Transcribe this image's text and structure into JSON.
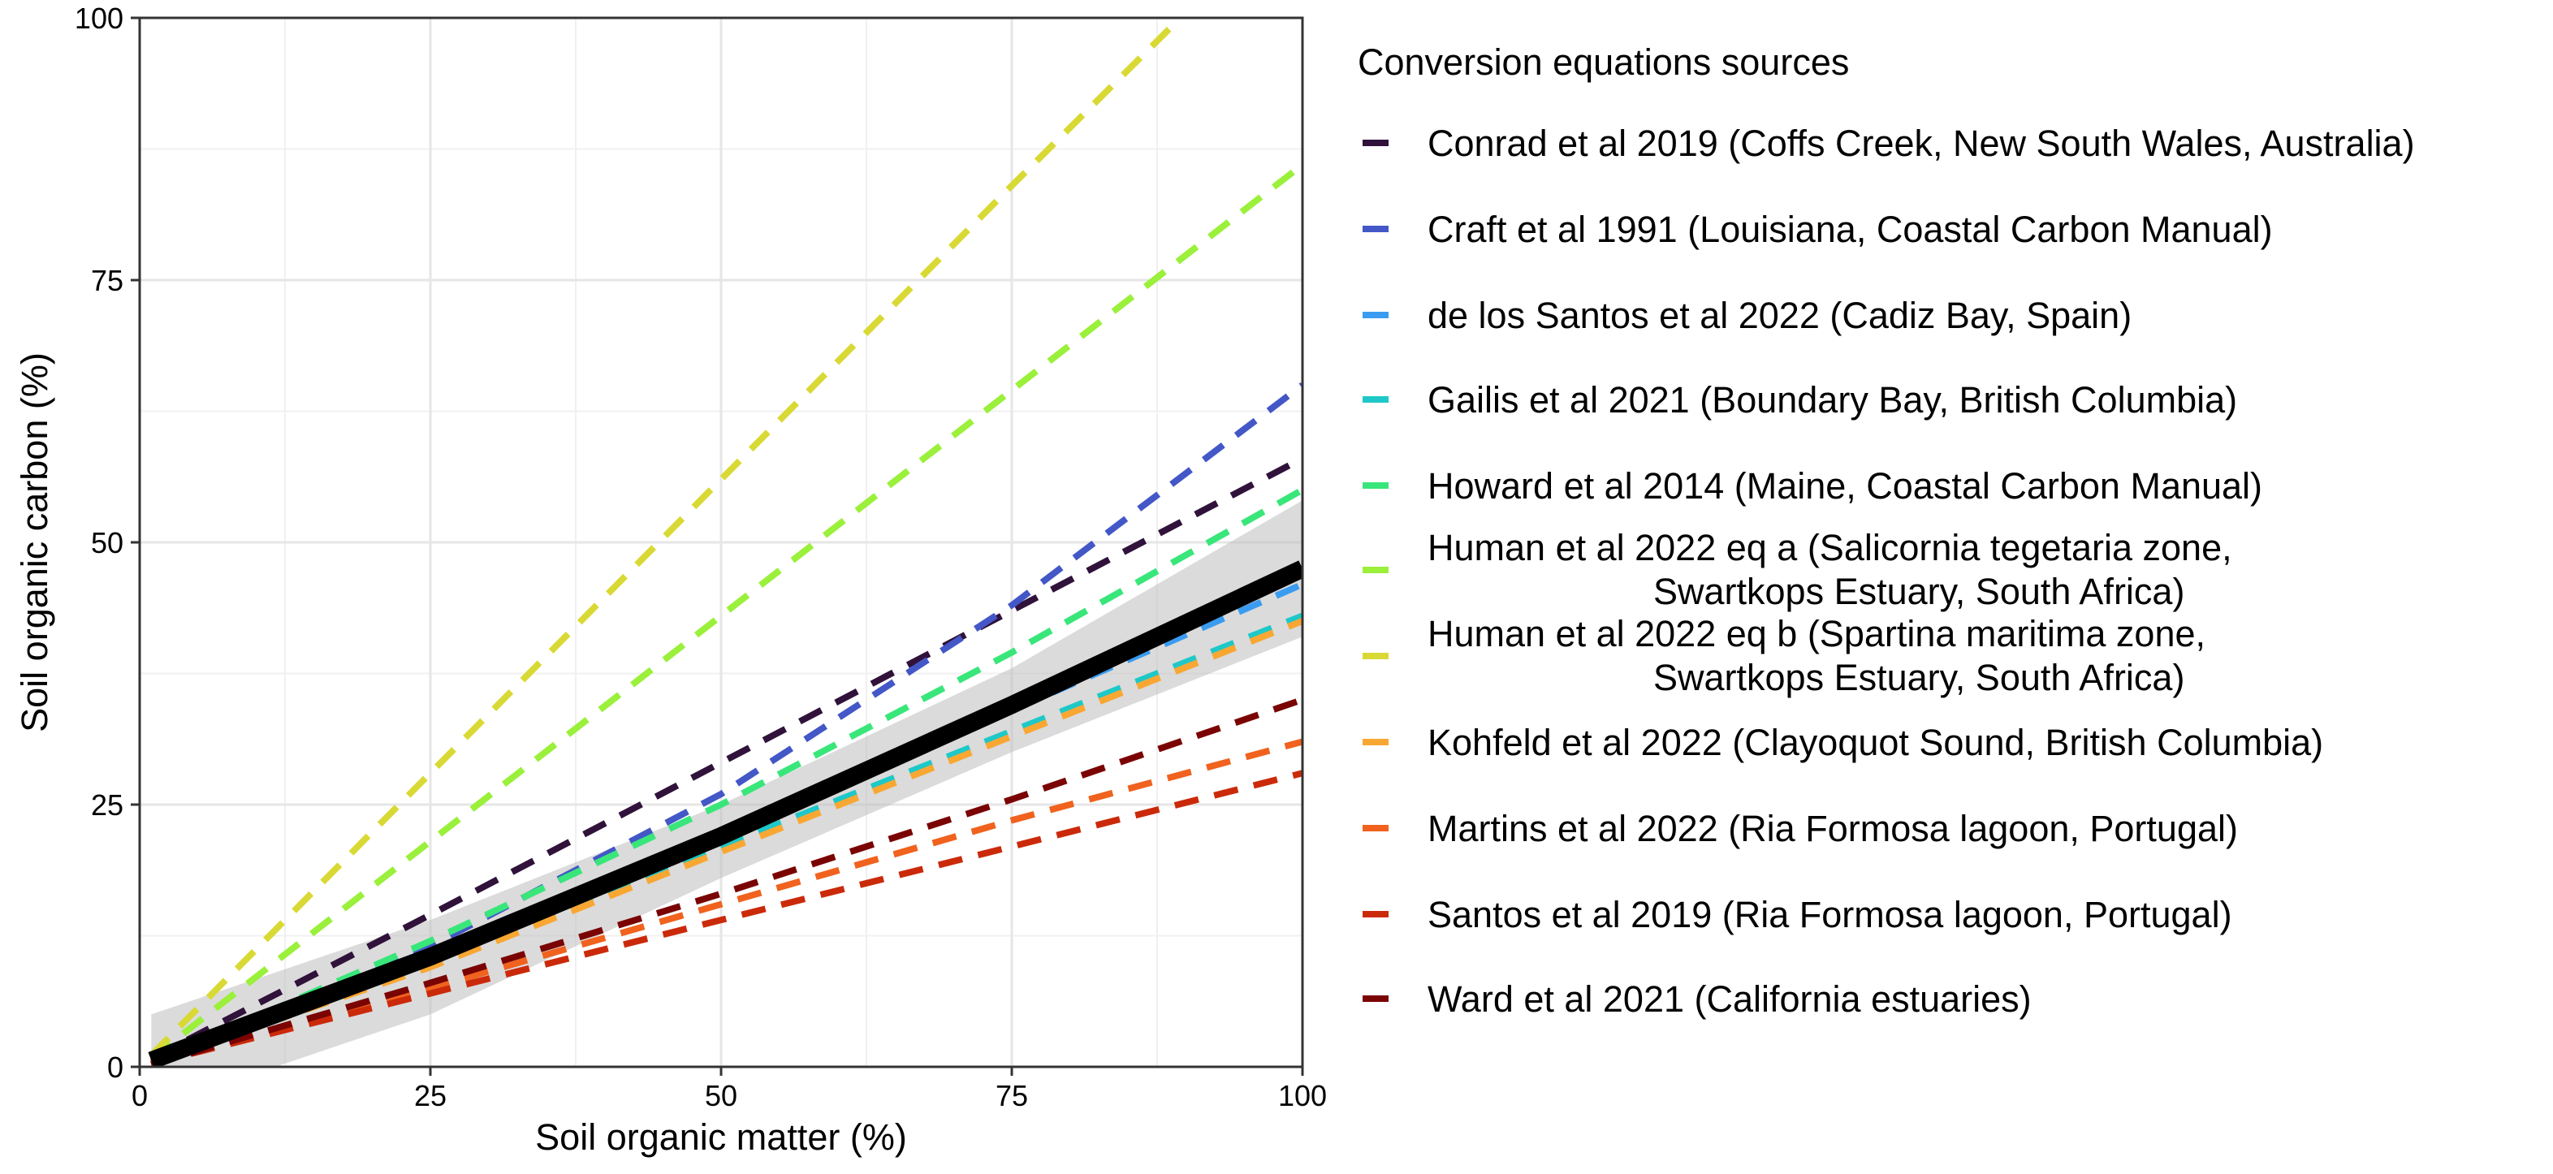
{
  "chart_data": {
    "type": "line",
    "xlabel": "Soil organic matter (%)",
    "ylabel": "Soil organic carbon (%)",
    "xlim": [
      0,
      100
    ],
    "ylim": [
      0,
      100
    ],
    "x_ticks": [
      0,
      25,
      50,
      75,
      100
    ],
    "y_ticks": [
      0,
      25,
      50,
      75,
      100
    ],
    "grid": true,
    "legend_position": "right",
    "legend_title": "Conversion equations sources",
    "series": [
      {
        "name": "Conrad et al 2019 (Coffs Creek, New South Wales, Australia)",
        "color": "#30123b",
        "x": [
          1,
          25,
          50,
          75,
          100
        ],
        "y": [
          0.8,
          14.5,
          29,
          43.5,
          58
        ]
      },
      {
        "name": "Craft et al 1991 (Louisiana, Coastal Carbon Manual)",
        "color": "#4357c7",
        "x": [
          1,
          25,
          50,
          75,
          100
        ],
        "y": [
          0.4,
          11.5,
          26,
          44,
          65
        ]
      },
      {
        "name": "de los Santos et al 2022 (Cadiz Bay, Spain)",
        "color": "#3a9cf0",
        "x": [
          1,
          25,
          50,
          75,
          100
        ],
        "y": [
          0.4,
          10.5,
          22,
          34,
          46
        ]
      },
      {
        "name": "Gailis et al 2021 (Boundary Bay, British Columbia)",
        "color": "#1ec8c8",
        "x": [
          1,
          25,
          50,
          75,
          100
        ],
        "y": [
          0.4,
          10,
          21,
          32,
          43
        ]
      },
      {
        "name": "Howard et al 2014 (Maine, Coastal Carbon Manual)",
        "color": "#39e67a",
        "x": [
          1,
          25,
          50,
          75,
          100
        ],
        "y": [
          0.4,
          12,
          25,
          39.5,
          55
        ]
      },
      {
        "name": "Human et al 2022 eq a (Salicornia tegetaria zone, Swartkops Estuary, South Africa)",
        "name_lines": [
          "Human et al 2022 eq a (Salicornia tegetaria zone,",
          "Swartkops Estuary, South Africa)"
        ],
        "color": "#9af03a",
        "x": [
          1,
          25,
          50,
          75,
          100
        ],
        "y": [
          0.8,
          21.5,
          43,
          64.5,
          86
        ]
      },
      {
        "name": "Human et al 2022 eq b (Spartina maritima zone, Swartkops Estuary, South Africa)",
        "name_lines": [
          "Human et al 2022 eq b (Spartina maritima zone,",
          "Swartkops Estuary, South Africa)"
        ],
        "color": "#d9d935",
        "x": [
          1,
          25,
          50,
          75,
          89.5
        ],
        "y": [
          1.1,
          28,
          56,
          84,
          100
        ]
      },
      {
        "name": "Kohfeld et al 2022 (Clayoquot Sound, British Columbia)",
        "color": "#f9a733",
        "x": [
          1,
          25,
          50,
          75,
          100
        ],
        "y": [
          0.4,
          9.5,
          20.5,
          31.5,
          42.5
        ]
      },
      {
        "name": "Martins et al 2022 (Ria Formosa lagoon, Portugal)",
        "color": "#f0621e",
        "x": [
          1,
          25,
          50,
          75,
          100
        ],
        "y": [
          0.3,
          7.5,
          15.5,
          23.5,
          31
        ]
      },
      {
        "name": "Santos et al 2019 (Ria Formosa lagoon, Portugal)",
        "color": "#cb2a0a",
        "x": [
          1,
          25,
          50,
          75,
          100
        ],
        "y": [
          0.3,
          7,
          14,
          21,
          28
        ]
      },
      {
        "name": "Ward et al 2021 (California estuaries)",
        "color": "#7a0403",
        "x": [
          1,
          25,
          50,
          75,
          100
        ],
        "y": [
          0.2,
          8,
          16.5,
          25.5,
          35
        ]
      }
    ],
    "fit": {
      "color": "#000000",
      "x": [
        1,
        25,
        50,
        75,
        100
      ],
      "y": [
        0.6,
        10.5,
        22,
        34.5,
        47.5
      ],
      "ci_upper": [
        5,
        14,
        25,
        38,
        54
      ],
      "ci_lower": [
        -4,
        5,
        18,
        30,
        41
      ]
    }
  }
}
